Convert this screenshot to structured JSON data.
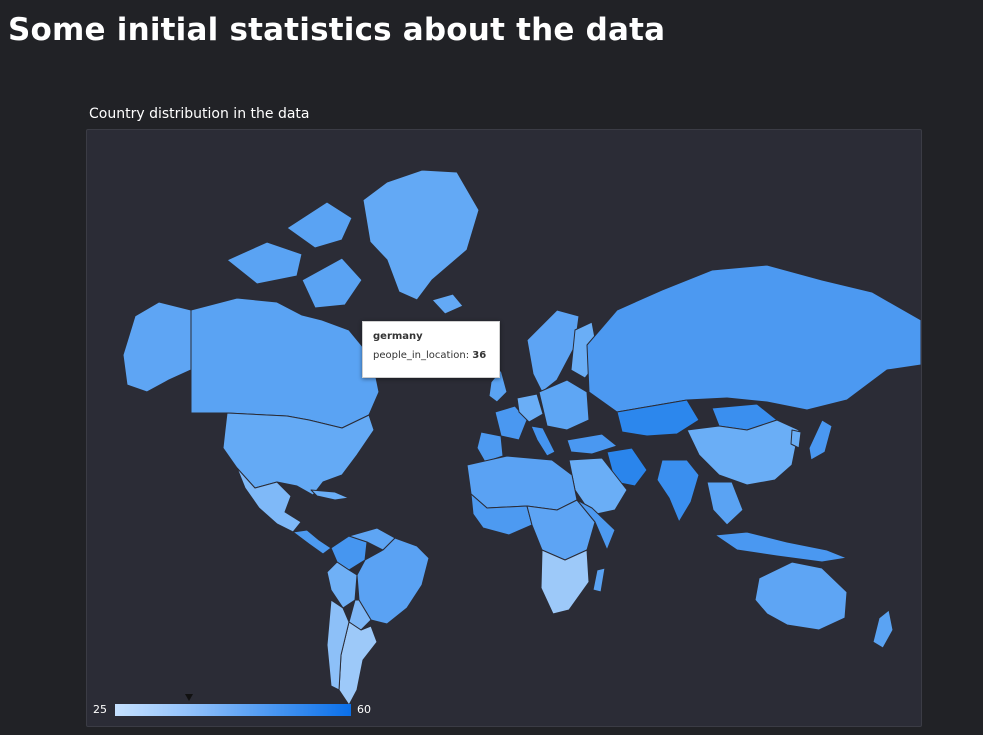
{
  "page": {
    "title": "Some initial statistics about the data"
  },
  "panel": {
    "title": "Country distribution in the data"
  },
  "map": {
    "metric": "people_in_location",
    "color_scale": [
      "#c6e1ff",
      "#8fc0fb",
      "#4a97f2",
      "#0a6fe9"
    ],
    "ocean_color": "#2b2c36",
    "border_color": "#2b2c36"
  },
  "tooltip": {
    "country": "germany",
    "label": "people_in_location:",
    "value": "36"
  },
  "legend": {
    "min": "25",
    "max": "60",
    "marker_value": 36
  },
  "chart_data": {
    "type": "choropleth",
    "value_range": [
      25,
      60
    ],
    "highlighted": [
      {
        "country": "germany",
        "people_in_location": 36
      }
    ]
  }
}
